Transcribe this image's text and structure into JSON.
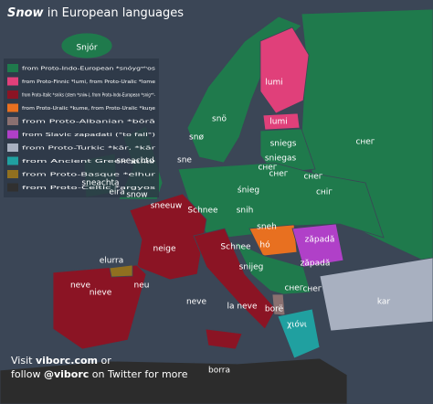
{
  "title": {
    "word": "Snow",
    "rest": "in European languages"
  },
  "legend": [
    {
      "color": "#1f7a4c",
      "label": "from Proto-Indo-European *snóygʷʰos"
    },
    {
      "color": "#e0407a",
      "label": "from Proto-Finnic *lumi, from Proto-Uralic *lome"
    },
    {
      "color": "#8b1424",
      "label": "from Proto-Italic *sniks (stem *sniw-), from Proto-Indo-European *snigʷʰ-"
    },
    {
      "color": "#e87020",
      "label": "from Proto-Uralic *kume, from Proto-Uralic *kuŋe"
    },
    {
      "color": "#8a7070",
      "label": "from Proto-Albanian *bōrā"
    },
    {
      "color": "#b040c8",
      "label": "from Slavic zapadati (\"to fall\")"
    },
    {
      "color": "#a8b0c0",
      "label": "from Proto-Turkic *kār, *kār"
    },
    {
      "color": "#20a0a0",
      "label": "from Ancient Greek χιών"
    },
    {
      "color": "#907020",
      "label": "from Proto-Basque *elhur"
    },
    {
      "color": "#303030",
      "label": "from Proto-Celtic *argyos"
    }
  ],
  "labels": [
    "Snjór",
    "lumi",
    "snö",
    "snø",
    "lumi",
    "sniegs",
    "снег",
    "sniegas",
    "снег",
    "снег",
    "сніг",
    "sneachtd",
    "sne",
    "śnieg",
    "sneachta",
    "snow",
    "sneeuw",
    "Schnee",
    "snih",
    "sneh",
    "Schnee",
    "hó",
    "zăpadă",
    "zăpadă",
    "neige",
    "snijeg",
    "снег",
    "снег",
    "elurra",
    "neve",
    "neve",
    "nieve",
    "la neve",
    "neu",
    "borë",
    "χιόνι",
    "kar",
    "borra",
    "eira",
    "снег"
  ],
  "footer": {
    "line1": "Visit",
    "site": "viborc.com",
    "or": "or",
    "line2": "follow",
    "handle": "@viborc",
    "rest": "on Twitter for more"
  }
}
